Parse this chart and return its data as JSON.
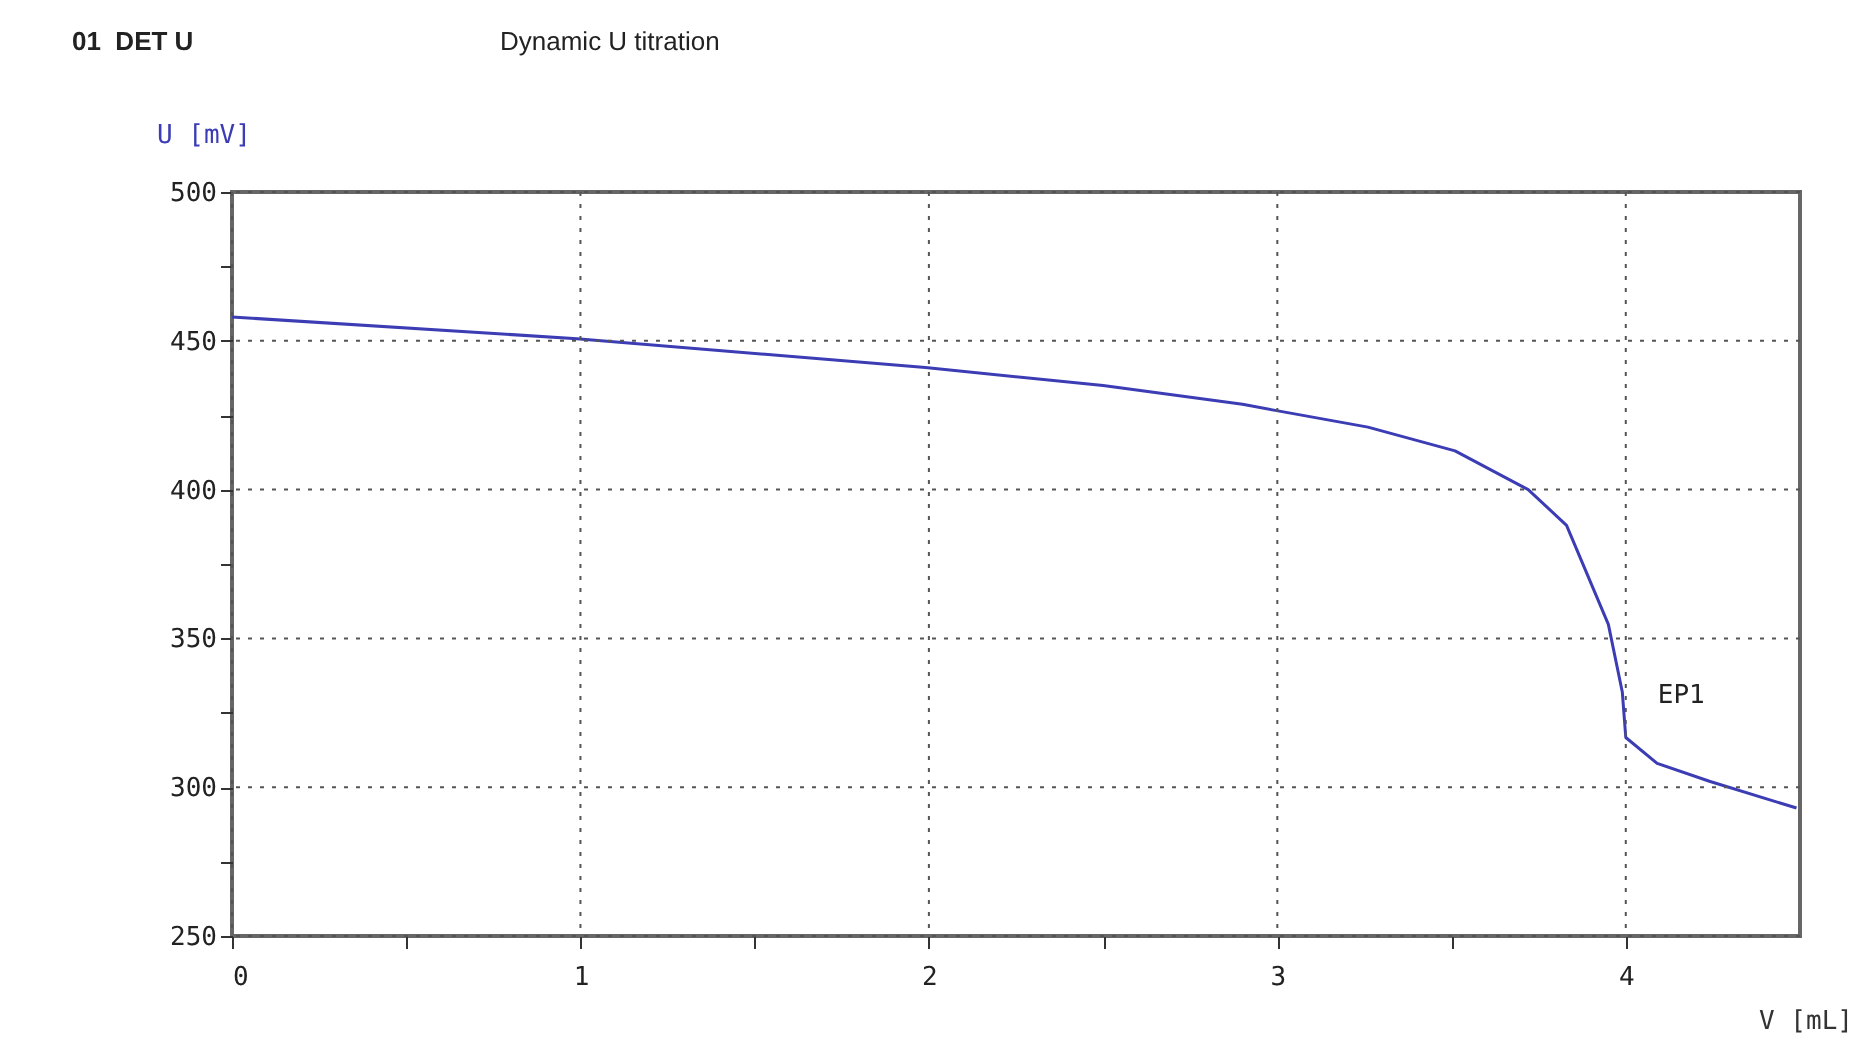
{
  "chart_data": {
    "type": "line",
    "title": "01  DET U",
    "subtitle": "Dynamic U titration",
    "xlabel": "V [mL]",
    "ylabel": "U [mV]",
    "x": [
      0,
      0.99,
      1.99,
      2.5,
      2.9,
      2.99,
      3.26,
      3.51,
      3.72,
      3.83,
      3.95,
      3.99,
      4.0,
      4.09,
      4.24,
      4.49
    ],
    "series": [
      {
        "color": "#3c3cb4",
        "values": [
          458,
          450.7,
          441,
          435,
          428.7,
          426.7,
          421,
          413,
          400,
          388,
          354.7,
          332,
          316.7,
          308,
          302,
          293
        ]
      }
    ],
    "xlim": [
      0,
      4.5
    ],
    "ylim": [
      250,
      500
    ],
    "xticks": [
      0,
      {
        "value": 0.5,
        "label": null
      },
      1,
      {
        "value": 1.5,
        "label": null
      },
      2,
      {
        "value": 2.5,
        "label": null
      },
      3,
      {
        "value": 3.5,
        "label": null
      },
      4
    ],
    "yticks": [
      250,
      {
        "value": 275,
        "label": null
      },
      300,
      {
        "value": 325,
        "label": null
      },
      350,
      {
        "value": 375,
        "label": null
      },
      400,
      {
        "value": 425,
        "label": null
      },
      450,
      {
        "value": 475,
        "label": null
      },
      500
    ],
    "grid": true,
    "annotations": [
      {
        "text": "EP1",
        "x": 4,
        "y": 331
      }
    ]
  }
}
